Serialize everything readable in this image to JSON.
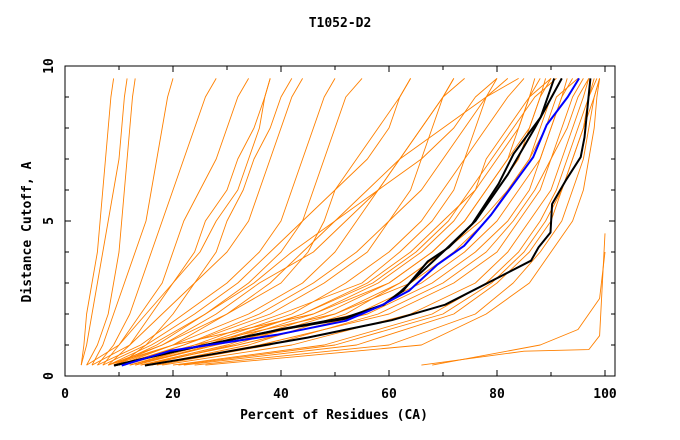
{
  "chart_data": {
    "type": "line",
    "title": "T1052-D2",
    "xlabel": "Percent of Residues (CA)",
    "ylabel": "Distance Cutoff, A",
    "xlim": [
      0,
      100
    ],
    "ylim": [
      0,
      10
    ],
    "x_ticks": [
      "0",
      "20",
      "40",
      "60",
      "80",
      "100"
    ],
    "y_ticks": [
      "0",
      "5",
      "10"
    ],
    "grid": false,
    "legend": "none",
    "colors": {
      "models": "#ff8000",
      "highlight_black": "#000000",
      "highlight_blue": "#0000ff"
    },
    "y_levels": [
      0.35,
      1,
      2,
      3,
      4,
      5,
      6,
      7,
      8,
      9,
      9.6
    ],
    "model_curves_x_at_levels": [
      [
        3,
        3.5,
        4,
        5,
        6,
        6.5,
        7,
        7.5,
        8,
        8.5,
        9
      ],
      [
        3,
        4,
        5,
        6,
        7,
        8,
        9,
        10,
        10.5,
        11,
        11.5
      ],
      [
        4,
        6,
        8,
        9,
        10,
        10.5,
        11,
        11.5,
        12,
        12.5,
        13
      ],
      [
        5,
        7,
        9,
        11,
        13,
        15,
        16,
        17,
        18,
        19,
        20
      ],
      [
        6,
        9,
        12,
        14,
        16,
        18,
        20,
        22,
        24,
        26,
        28
      ],
      [
        7,
        10,
        14,
        18,
        20,
        22,
        25,
        28,
        30,
        32,
        34
      ],
      [
        8,
        12,
        16,
        20,
        24,
        26,
        30,
        32,
        35,
        37,
        38
      ],
      [
        10,
        15,
        20,
        24,
        28,
        30,
        33,
        35,
        38,
        40,
        42
      ],
      [
        8,
        16,
        26,
        34,
        40,
        44,
        46,
        48,
        50,
        52,
        55
      ],
      [
        9,
        18,
        30,
        40,
        45,
        48,
        50,
        54,
        58,
        62,
        64
      ],
      [
        10,
        20,
        34,
        44,
        50,
        54,
        58,
        62,
        66,
        70,
        72
      ],
      [
        10,
        22,
        38,
        48,
        56,
        60,
        64,
        66,
        68,
        70,
        72
      ],
      [
        12,
        25,
        42,
        52,
        60,
        66,
        70,
        74,
        78,
        82,
        85
      ],
      [
        11,
        24,
        40,
        55,
        62,
        68,
        72,
        74,
        76,
        78,
        80
      ],
      [
        13,
        28,
        46,
        58,
        66,
        72,
        76,
        78,
        82,
        86,
        90
      ],
      [
        9,
        20,
        30,
        38,
        44,
        50,
        56,
        62,
        70,
        78,
        82
      ],
      [
        8,
        18,
        28,
        36,
        46,
        52,
        58,
        62,
        66,
        70,
        74
      ],
      [
        8,
        20,
        46,
        60,
        68,
        74,
        78,
        82,
        86,
        88,
        90
      ],
      [
        10,
        24,
        50,
        64,
        72,
        78,
        82,
        86,
        88,
        90,
        92
      ],
      [
        12,
        28,
        54,
        66,
        74,
        80,
        84,
        88,
        90,
        92,
        93
      ],
      [
        14,
        32,
        56,
        68,
        76,
        82,
        86,
        88,
        90,
        92,
        94
      ],
      [
        16,
        36,
        60,
        72,
        80,
        84,
        88,
        90,
        92,
        94,
        96
      ],
      [
        18,
        42,
        64,
        76,
        82,
        86,
        90,
        92,
        94,
        96,
        97
      ],
      [
        20,
        48,
        68,
        78,
        84,
        88,
        91,
        93,
        95,
        97,
        98
      ],
      [
        22,
        54,
        72,
        80,
        86,
        90,
        92,
        94,
        96,
        98,
        99
      ],
      [
        24,
        60,
        76,
        83,
        88,
        92,
        94,
        96,
        97,
        98,
        99
      ],
      [
        26,
        66,
        78,
        86,
        90,
        94,
        96,
        97,
        98,
        98.5,
        99
      ],
      [
        12,
        26,
        44,
        56,
        64,
        70,
        76,
        80,
        84,
        86,
        88
      ],
      [
        14,
        30,
        48,
        60,
        68,
        74,
        78,
        82,
        84,
        86,
        87
      ],
      [
        16,
        34,
        52,
        62,
        70,
        76,
        80,
        84,
        86,
        88,
        89
      ],
      [
        6,
        14,
        22,
        30,
        36,
        40,
        42,
        44,
        46,
        48,
        50
      ],
      [
        5,
        12,
        18,
        24,
        30,
        34,
        36,
        38,
        40,
        42,
        44
      ],
      [
        7,
        15,
        24,
        32,
        38,
        44,
        50,
        56,
        60,
        62,
        64
      ],
      [
        4,
        10,
        15,
        20,
        25,
        28,
        32,
        34,
        36,
        37,
        38
      ],
      [
        9,
        17,
        26,
        35,
        42,
        50,
        58,
        66,
        72,
        76,
        80
      ],
      [
        11,
        22,
        36,
        46,
        54,
        60,
        66,
        70,
        74,
        78,
        84
      ],
      [
        13,
        27,
        44,
        57,
        65,
        71,
        75,
        79,
        83,
        87,
        91
      ],
      [
        15,
        31,
        50,
        62,
        70,
        77,
        82,
        86,
        89,
        91,
        95
      ],
      [
        17,
        38,
        58,
        70,
        78,
        83,
        87,
        90,
        93,
        95,
        97
      ],
      [
        21,
        50,
        70,
        79,
        85,
        89,
        92,
        94,
        96,
        97,
        98.5
      ]
    ],
    "model_curves_outliers": [
      [
        [
          66,
          0.35
        ],
        [
          85,
          0.8
        ],
        [
          97,
          0.85
        ],
        [
          99,
          1.3
        ],
        [
          100,
          4.6
        ]
      ],
      [
        [
          68,
          0.35
        ],
        [
          88,
          1.0
        ],
        [
          95,
          1.5
        ],
        [
          99,
          2.5
        ],
        [
          100,
          4.0
        ]
      ]
    ],
    "highlighted_series": [
      {
        "color": "#000000",
        "points": [
          [
            9.1,
            0.34
          ],
          [
            21.5,
            0.84
          ],
          [
            40.6,
            1.53
          ],
          [
            52,
            1.89
          ],
          [
            59,
            2.3
          ],
          [
            62.6,
            2.75
          ],
          [
            67.2,
            3.7
          ],
          [
            71.1,
            4.15
          ],
          [
            75.4,
            4.9
          ],
          [
            80.3,
            6.2
          ],
          [
            83.1,
            7.17
          ],
          [
            88.1,
            8.35
          ],
          [
            90.6,
            9.6
          ]
        ]
      },
      {
        "color": "#000000",
        "points": [
          [
            9.1,
            0.34
          ],
          [
            21,
            0.82
          ],
          [
            40,
            1.5
          ],
          [
            52,
            1.85
          ],
          [
            59,
            2.3
          ],
          [
            62,
            2.7
          ],
          [
            70,
            4.0
          ],
          [
            76,
            5.0
          ],
          [
            82,
            6.5
          ],
          [
            87,
            8.0
          ],
          [
            92,
            9.6
          ]
        ]
      },
      {
        "color": "#0000ff",
        "points": [
          [
            10.5,
            0.34
          ],
          [
            19.4,
            0.81
          ],
          [
            39.2,
            1.33
          ],
          [
            52,
            1.78
          ],
          [
            58.4,
            2.26
          ],
          [
            63.7,
            2.75
          ],
          [
            69,
            3.6
          ],
          [
            73.9,
            4.2
          ],
          [
            78.9,
            5.2
          ],
          [
            83.1,
            6.2
          ],
          [
            86.7,
            7.06
          ],
          [
            89.2,
            8.1
          ],
          [
            93.1,
            9.0
          ],
          [
            95.2,
            9.6
          ]
        ]
      },
      {
        "color": "#000000",
        "points": [
          [
            14.8,
            0.34
          ],
          [
            27.2,
            0.7
          ],
          [
            44.9,
            1.24
          ],
          [
            60.5,
            1.8
          ],
          [
            70.4,
            2.3
          ],
          [
            80.3,
            3.18
          ],
          [
            86.3,
            3.72
          ],
          [
            87.7,
            4.15
          ],
          [
            89.9,
            4.63
          ],
          [
            90.2,
            5.55
          ],
          [
            92.7,
            6.3
          ],
          [
            95.5,
            7.06
          ],
          [
            96.2,
            7.7
          ],
          [
            97.3,
            9.6
          ]
        ]
      }
    ]
  }
}
